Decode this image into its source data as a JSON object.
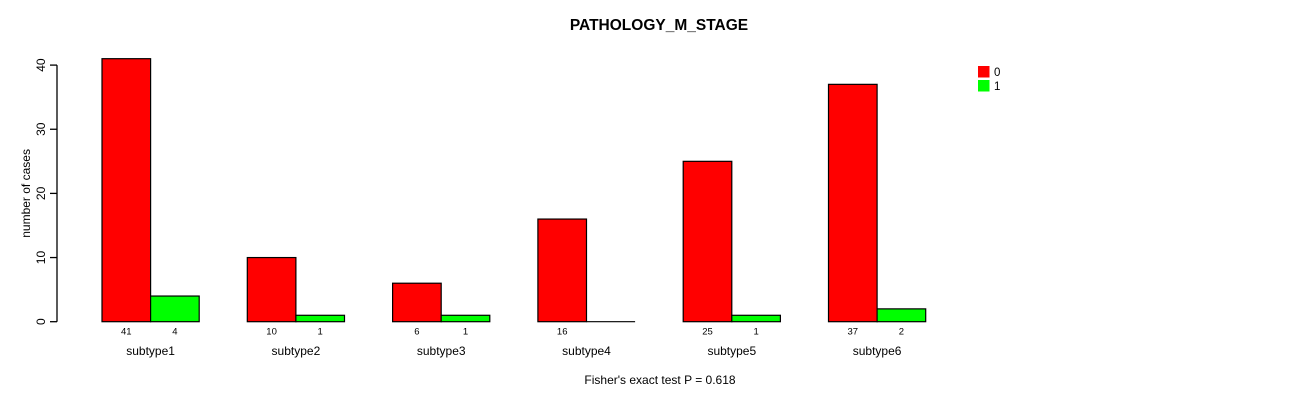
{
  "chart_data": {
    "type": "bar",
    "title": "PATHOLOGY_M_STAGE",
    "xlabel": "",
    "ylabel": "number of cases",
    "categories": [
      "subtype1",
      "subtype2",
      "subtype3",
      "subtype4",
      "subtype5",
      "subtype6"
    ],
    "series": [
      {
        "name": "0",
        "color": "#ff0000",
        "values": [
          41,
          10,
          6,
          16,
          25,
          37
        ]
      },
      {
        "name": "1",
        "color": "#00ff00",
        "values": [
          4,
          1,
          1,
          0,
          1,
          2
        ]
      }
    ],
    "yticks": [
      0,
      10,
      20,
      30,
      40
    ],
    "ylim": [
      0,
      41
    ],
    "grid": false,
    "legend_position": "top-right",
    "legend_entries": [
      {
        "label": "0",
        "color": "#ff0000"
      },
      {
        "label": "1",
        "color": "#00ff00"
      }
    ],
    "annotation": "Fisher's exact test P = 0.618",
    "colors": {
      "bar_border": "#000000",
      "axis": "#000000",
      "background": "#ffffff"
    }
  }
}
